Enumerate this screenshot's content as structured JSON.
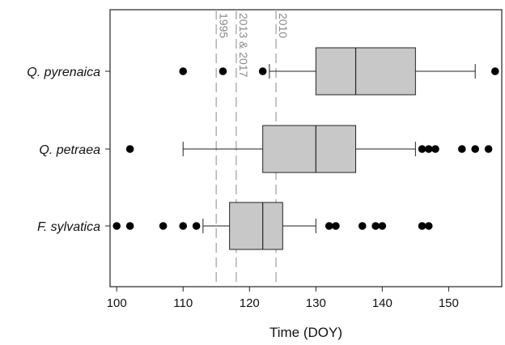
{
  "chart_data": {
    "type": "boxplot",
    "xlabel": "Time (DOY)",
    "xlim": [
      99,
      158
    ],
    "xticks": [
      100,
      110,
      120,
      130,
      140,
      150
    ],
    "grid": false,
    "categories": [
      "Q. pyrenaica",
      "Q. petraea",
      "F. sylvatica"
    ],
    "series": [
      {
        "category": "Q. pyrenaica",
        "whisker_low": 123,
        "q1": 130,
        "median": 136,
        "q3": 145,
        "whisker_high": 154,
        "outliers": [
          110,
          116,
          122,
          157
        ]
      },
      {
        "category": "Q. petraea",
        "whisker_low": 110,
        "q1": 122,
        "median": 130,
        "q3": 136,
        "whisker_high": 145,
        "outliers": [
          102,
          146,
          147,
          148,
          152,
          154,
          156
        ]
      },
      {
        "category": "F. sylvatica",
        "whisker_low": 113,
        "q1": 117,
        "median": 122,
        "q3": 125,
        "whisker_high": 130,
        "outliers": [
          100,
          102,
          107,
          110,
          112,
          132,
          133,
          137,
          139,
          140,
          146,
          147
        ]
      }
    ],
    "reference_lines": [
      {
        "x": 115,
        "label": "1995"
      },
      {
        "x": 118,
        "label": "2013 & 2017"
      },
      {
        "x": 124,
        "label": "2010"
      }
    ],
    "colors": {
      "box_fill": "#c8c8c8",
      "stroke": "#222222",
      "reference_line": "#b5b5b5",
      "reference_label": "#8a8a8a",
      "outlier": "#000000"
    }
  }
}
